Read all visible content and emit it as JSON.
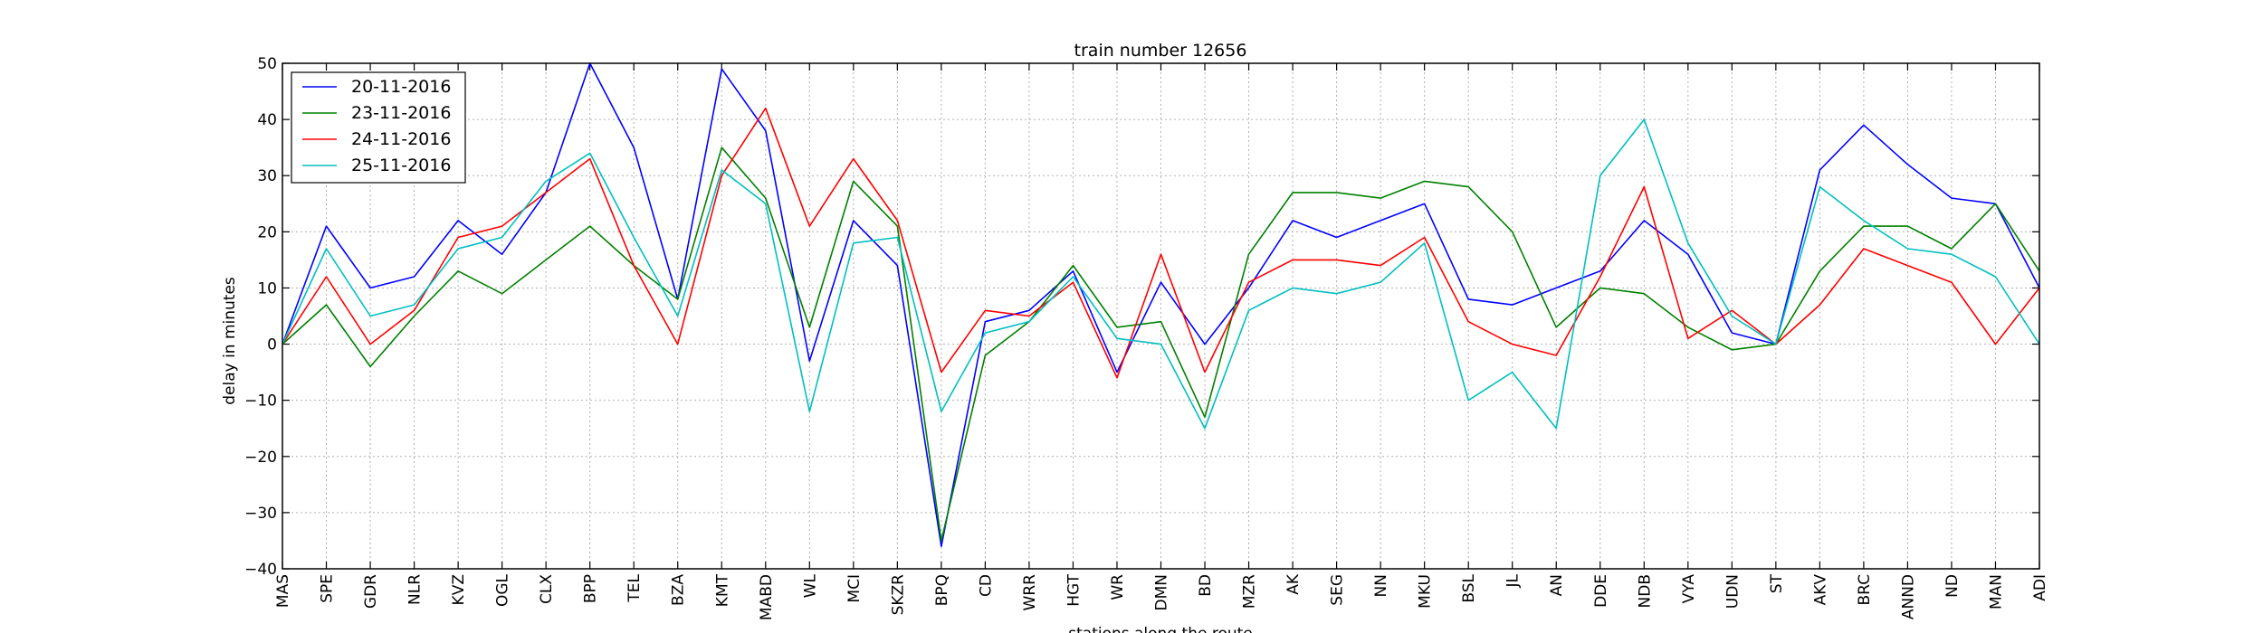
{
  "chart_data": {
    "type": "line",
    "title": "train number 12656",
    "xlabel": "stations along the route",
    "ylabel": "delay in minutes",
    "ylim": [
      -40,
      50
    ],
    "yticks": [
      -40,
      -30,
      -20,
      -10,
      0,
      10,
      20,
      30,
      40,
      50
    ],
    "grid": true,
    "legend_position": "top-left",
    "categories": [
      "MAS",
      "SPE",
      "GDR",
      "NLR",
      "KVZ",
      "OGL",
      "CLX",
      "BPP",
      "TEL",
      "BZA",
      "KMT",
      "MABD",
      "WL",
      "MCI",
      "SKZR",
      "BPQ",
      "CD",
      "WRR",
      "HGT",
      "WR",
      "DMN",
      "BD",
      "MZR",
      "AK",
      "SEG",
      "NN",
      "MKU",
      "BSL",
      "JL",
      "AN",
      "DDE",
      "NDB",
      "VYA",
      "UDN",
      "ST",
      "AKV",
      "BRC",
      "ANND",
      "ND",
      "MAN",
      "ADI"
    ],
    "series": [
      {
        "name": "20-11-2016",
        "color": "#0000ff",
        "values": [
          0,
          21,
          10,
          12,
          22,
          16,
          27,
          50,
          35,
          8,
          49,
          38,
          -3,
          22,
          14,
          -36,
          4,
          6,
          13,
          -5,
          11,
          0,
          10,
          22,
          19,
          22,
          25,
          8,
          7,
          10,
          13,
          22,
          16,
          2,
          0,
          31,
          39,
          32,
          26,
          25,
          10
        ]
      },
      {
        "name": "23-11-2016",
        "color": "#008000",
        "values": [
          0,
          7,
          -4,
          5,
          13,
          9,
          15,
          21,
          14,
          8,
          35,
          26,
          3,
          29,
          21,
          -35,
          -2,
          4,
          14,
          3,
          4,
          -13,
          16,
          27,
          27,
          26,
          29,
          28,
          20,
          3,
          10,
          9,
          3,
          -1,
          0,
          13,
          21,
          21,
          17,
          25,
          13
        ]
      },
      {
        "name": "24-11-2016",
        "color": "#ff0000",
        "values": [
          0,
          12,
          0,
          6,
          19,
          21,
          27,
          33,
          14,
          0,
          30,
          42,
          21,
          33,
          22,
          -5,
          6,
          5,
          11,
          -6,
          16,
          -5,
          11,
          15,
          15,
          14,
          19,
          4,
          0,
          -2,
          12,
          28,
          1,
          6,
          0,
          7,
          17,
          14,
          11,
          0,
          10
        ]
      },
      {
        "name": "25-11-2016",
        "color": "#00bfbf",
        "values": [
          0,
          17,
          5,
          7,
          17,
          19,
          29,
          34,
          19,
          5,
          31,
          25,
          -12,
          18,
          19,
          -12,
          2,
          4,
          12,
          1,
          0,
          -15,
          6,
          10,
          9,
          11,
          18,
          -10,
          -5,
          -15,
          30,
          40,
          18,
          5,
          0,
          28,
          22,
          17,
          16,
          12,
          0
        ]
      }
    ]
  }
}
